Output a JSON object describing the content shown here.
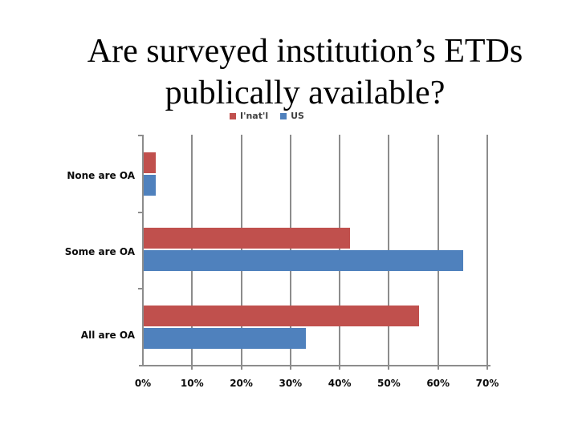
{
  "title": {
    "line1": "Are surveyed institution’s ETDs",
    "line2": "publically available?"
  },
  "chart_data": {
    "type": "bar",
    "orientation": "horizontal",
    "title": "Are surveyed institution’s ETDs publically available?",
    "categories": [
      "None are OA",
      "Some are OA",
      "All are OA"
    ],
    "series": [
      {
        "name": "I'nat'l",
        "color": "#C0504D",
        "values": [
          2.4,
          42,
          56
        ]
      },
      {
        "name": "US",
        "color": "#4F81BD",
        "values": [
          2.4,
          65,
          33
        ]
      }
    ],
    "xlim": [
      0,
      70
    ],
    "x_ticks": [
      0,
      10,
      20,
      30,
      40,
      50,
      60,
      70
    ],
    "x_tick_suffix": "%",
    "grid": "vertical",
    "legend_position": "top-center",
    "value_labels_shown": false
  },
  "colors": {
    "series_intl": "#C0504D",
    "series_us": "#4F81BD",
    "gridline": "#8C8C8C",
    "label_text": "#0a0a0a",
    "background": "#ffffff"
  }
}
